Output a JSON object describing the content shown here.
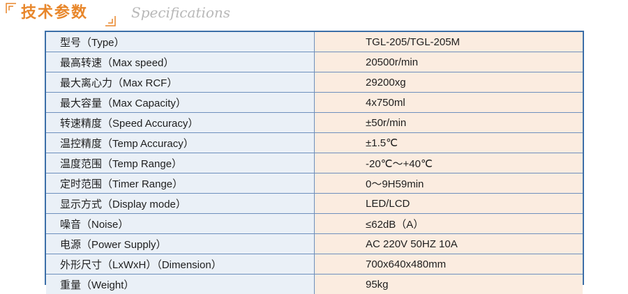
{
  "header": {
    "title": "技术参数",
    "subtitle": "Specifications"
  },
  "colors": {
    "accent_orange": "#e8862a",
    "table_border": "#3c6fa8",
    "label_bg": "#eaf0f7",
    "value_bg": "#fbece0",
    "subtitle_gray": "#b8b8b8"
  },
  "specs": [
    {
      "label": "型号（Type）",
      "value": "TGL-205/TGL-205M"
    },
    {
      "label": "最高转速（Max speed）",
      "value": "20500r/min"
    },
    {
      "label": "最大离心力（Max RCF）",
      "value": "29200xg"
    },
    {
      "label": "最大容量（Max Capacity）",
      "value": "4x750ml"
    },
    {
      "label": "转速精度（Speed Accuracy）",
      "value": "±50r/min"
    },
    {
      "label": "温控精度（Temp Accuracy）",
      "value": "±1.5℃"
    },
    {
      "label": "温度范围（Temp Range）",
      "value": "-20℃～+40℃"
    },
    {
      "label": "定时范围（Timer Range）",
      "value": "0～9H59min"
    },
    {
      "label": "显示方式（Display mode）",
      "value": "LED/LCD"
    },
    {
      "label": "噪音（Noise）",
      "value": "≤62dB（A）"
    },
    {
      "label": "电源（Power Supply）",
      "value": "AC 220V 50HZ 10A"
    },
    {
      "label": "外形尺寸（LxWxH）（Dimension）",
      "value": "700x640x480mm"
    },
    {
      "label": "重量（Weight）",
      "value": "95kg"
    }
  ]
}
